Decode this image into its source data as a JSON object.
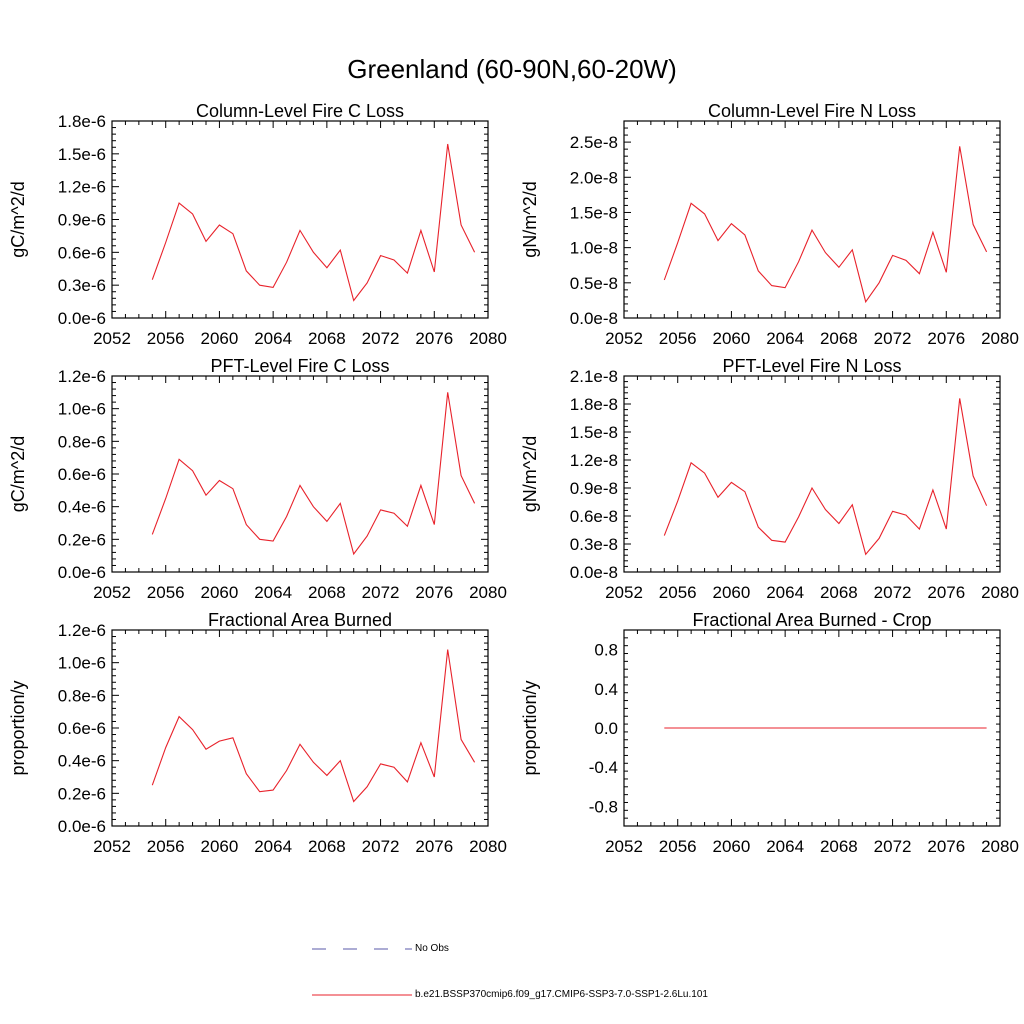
{
  "title": "Greenland (60-90N,60-20W)",
  "legend": {
    "no_obs_label": "No Obs",
    "no_obs_color": "#5a5aa8",
    "case_label": "b.e21.BSSP370cmip6.f09_g17.CMIP6-SSP3-7.0-SSP1-2.6Lu.101",
    "case_color": "#e8222b"
  },
  "chart_data": [
    {
      "type": "line",
      "title": "Column-Level Fire C Loss",
      "ylabel": "gC/m^2/d",
      "xlim": [
        2052,
        2080
      ],
      "xticks": [
        "2052",
        "2056",
        "2060",
        "2064",
        "2068",
        "2072",
        "2076",
        "2080"
      ],
      "ylim": [
        0,
        1.8e-06
      ],
      "yticks": [
        {
          "v": 0,
          "label": "0.0e-6"
        },
        {
          "v": 3e-07,
          "label": "0.3e-6"
        },
        {
          "v": 6e-07,
          "label": "0.6e-6"
        },
        {
          "v": 9e-07,
          "label": "0.9e-6"
        },
        {
          "v": 1.2e-06,
          "label": "1.2e-6"
        },
        {
          "v": 1.5e-06,
          "label": "1.5e-6"
        },
        {
          "v": 1.8e-06,
          "label": "1.8e-6"
        }
      ],
      "x": [
        2055,
        2056,
        2057,
        2058,
        2059,
        2060,
        2061,
        2062,
        2063,
        2064,
        2065,
        2066,
        2067,
        2068,
        2069,
        2070,
        2071,
        2072,
        2073,
        2074,
        2075,
        2076,
        2077,
        2078,
        2079
      ],
      "series": [
        {
          "values": [
            3.5e-07,
            6.9e-07,
            1.05e-06,
            9.5e-07,
            7e-07,
            8.5e-07,
            7.7e-07,
            4.3e-07,
            3e-07,
            2.8e-07,
            5.1e-07,
            8e-07,
            6e-07,
            4.6e-07,
            6.2e-07,
            1.6e-07,
            3.2e-07,
            5.7e-07,
            5.3e-07,
            4.1e-07,
            8e-07,
            4.2e-07,
            1.59e-06,
            8.5e-07,
            6e-07
          ]
        }
      ]
    },
    {
      "type": "line",
      "title": "Column-Level Fire N Loss",
      "ylabel": "gN/m^2/d",
      "xlim": [
        2052,
        2080
      ],
      "xticks": [
        "2052",
        "2056",
        "2060",
        "2064",
        "2068",
        "2072",
        "2076",
        "2080"
      ],
      "ylim": [
        0,
        2.8e-08
      ],
      "yticks": [
        {
          "v": 0,
          "label": "0.0e-8"
        },
        {
          "v": 5e-09,
          "label": "0.5e-8"
        },
        {
          "v": 1e-08,
          "label": "1.0e-8"
        },
        {
          "v": 1.5e-08,
          "label": "1.5e-8"
        },
        {
          "v": 2e-08,
          "label": "2.0e-8"
        },
        {
          "v": 2.5e-08,
          "label": "2.5e-8"
        }
      ],
      "x": [
        2055,
        2056,
        2057,
        2058,
        2059,
        2060,
        2061,
        2062,
        2063,
        2064,
        2065,
        2066,
        2067,
        2068,
        2069,
        2070,
        2071,
        2072,
        2073,
        2074,
        2075,
        2076,
        2077,
        2078,
        2079
      ],
      "series": [
        {
          "values": [
            5.4e-09,
            1.07e-08,
            1.63e-08,
            1.48e-08,
            1.1e-08,
            1.34e-08,
            1.18e-08,
            6.7e-09,
            4.6e-09,
            4.3e-09,
            8e-09,
            1.25e-08,
            9.3e-09,
            7.2e-09,
            9.7e-09,
            2.3e-09,
            5e-09,
            8.9e-09,
            8.2e-09,
            6.3e-09,
            1.22e-08,
            6.5e-09,
            2.44e-08,
            1.33e-08,
            9.4e-09
          ]
        }
      ]
    },
    {
      "type": "line",
      "title": "PFT-Level Fire C Loss",
      "ylabel": "gC/m^2/d",
      "xlim": [
        2052,
        2080
      ],
      "xticks": [
        "2052",
        "2056",
        "2060",
        "2064",
        "2068",
        "2072",
        "2076",
        "2080"
      ],
      "ylim": [
        0,
        1.2e-06
      ],
      "yticks": [
        {
          "v": 0,
          "label": "0.0e-6"
        },
        {
          "v": 2e-07,
          "label": "0.2e-6"
        },
        {
          "v": 4e-07,
          "label": "0.4e-6"
        },
        {
          "v": 6e-07,
          "label": "0.6e-6"
        },
        {
          "v": 8e-07,
          "label": "0.8e-6"
        },
        {
          "v": 1e-06,
          "label": "1.0e-6"
        },
        {
          "v": 1.2e-06,
          "label": "1.2e-6"
        }
      ],
      "x": [
        2055,
        2056,
        2057,
        2058,
        2059,
        2060,
        2061,
        2062,
        2063,
        2064,
        2065,
        2066,
        2067,
        2068,
        2069,
        2070,
        2071,
        2072,
        2073,
        2074,
        2075,
        2076,
        2077,
        2078,
        2079
      ],
      "series": [
        {
          "values": [
            2.3e-07,
            4.5e-07,
            6.9e-07,
            6.2e-07,
            4.7e-07,
            5.6e-07,
            5.1e-07,
            2.9e-07,
            2e-07,
            1.9e-07,
            3.4e-07,
            5.3e-07,
            4e-07,
            3.1e-07,
            4.2e-07,
            1.1e-07,
            2.2e-07,
            3.8e-07,
            3.6e-07,
            2.8e-07,
            5.3e-07,
            2.9e-07,
            1.1e-06,
            5.9e-07,
            4.2e-07
          ]
        }
      ]
    },
    {
      "type": "line",
      "title": "PFT-Level Fire N Loss",
      "ylabel": "gN/m^2/d",
      "xlim": [
        2052,
        2080
      ],
      "xticks": [
        "2052",
        "2056",
        "2060",
        "2064",
        "2068",
        "2072",
        "2076",
        "2080"
      ],
      "ylim": [
        0,
        2.1e-08
      ],
      "yticks": [
        {
          "v": 0,
          "label": "0.0e-8"
        },
        {
          "v": 3e-09,
          "label": "0.3e-8"
        },
        {
          "v": 6e-09,
          "label": "0.6e-8"
        },
        {
          "v": 9e-09,
          "label": "0.9e-8"
        },
        {
          "v": 1.2e-08,
          "label": "1.2e-8"
        },
        {
          "v": 1.5e-08,
          "label": "1.5e-8"
        },
        {
          "v": 1.8e-08,
          "label": "1.8e-8"
        },
        {
          "v": 2.1e-08,
          "label": "2.1e-8"
        }
      ],
      "x": [
        2055,
        2056,
        2057,
        2058,
        2059,
        2060,
        2061,
        2062,
        2063,
        2064,
        2065,
        2066,
        2067,
        2068,
        2069,
        2070,
        2071,
        2072,
        2073,
        2074,
        2075,
        2076,
        2077,
        2078,
        2079
      ],
      "series": [
        {
          "values": [
            3.9e-09,
            7.6e-09,
            1.17e-08,
            1.06e-08,
            8e-09,
            9.6e-09,
            8.6e-09,
            4.8e-09,
            3.4e-09,
            3.2e-09,
            5.9e-09,
            9e-09,
            6.7e-09,
            5.2e-09,
            7.2e-09,
            1.9e-09,
            3.6e-09,
            6.5e-09,
            6.1e-09,
            4.6e-09,
            8.8e-09,
            4.6e-09,
            1.86e-08,
            1.03e-08,
            7.1e-09
          ]
        }
      ]
    },
    {
      "type": "line",
      "title": "Fractional Area Burned",
      "ylabel": "proportion/y",
      "xlim": [
        2052,
        2080
      ],
      "xticks": [
        "2052",
        "2056",
        "2060",
        "2064",
        "2068",
        "2072",
        "2076",
        "2080"
      ],
      "ylim": [
        0,
        1.2e-06
      ],
      "yticks": [
        {
          "v": 0,
          "label": "0.0e-6"
        },
        {
          "v": 2e-07,
          "label": "0.2e-6"
        },
        {
          "v": 4e-07,
          "label": "0.4e-6"
        },
        {
          "v": 6e-07,
          "label": "0.6e-6"
        },
        {
          "v": 8e-07,
          "label": "0.8e-6"
        },
        {
          "v": 1e-06,
          "label": "1.0e-6"
        },
        {
          "v": 1.2e-06,
          "label": "1.2e-6"
        }
      ],
      "x": [
        2055,
        2056,
        2057,
        2058,
        2059,
        2060,
        2061,
        2062,
        2063,
        2064,
        2065,
        2066,
        2067,
        2068,
        2069,
        2070,
        2071,
        2072,
        2073,
        2074,
        2075,
        2076,
        2077,
        2078,
        2079
      ],
      "series": [
        {
          "values": [
            2.5e-07,
            4.8e-07,
            6.7e-07,
            5.9e-07,
            4.7e-07,
            5.2e-07,
            5.4e-07,
            3.2e-07,
            2.1e-07,
            2.2e-07,
            3.4e-07,
            5e-07,
            3.9e-07,
            3.1e-07,
            4e-07,
            1.5e-07,
            2.4e-07,
            3.8e-07,
            3.6e-07,
            2.7e-07,
            5.1e-07,
            3e-07,
            1.08e-06,
            5.3e-07,
            3.9e-07
          ]
        }
      ]
    },
    {
      "type": "line",
      "title": "Fractional Area Burned - Crop",
      "ylabel": "proportion/y",
      "xlim": [
        2052,
        2080
      ],
      "xticks": [
        "2052",
        "2056",
        "2060",
        "2064",
        "2068",
        "2072",
        "2076",
        "2080"
      ],
      "ylim": [
        -1.0,
        1.0
      ],
      "yticks": [
        {
          "v": -0.8,
          "label": "-0.8"
        },
        {
          "v": -0.4,
          "label": "-0.4"
        },
        {
          "v": 0,
          "label": "0.0"
        },
        {
          "v": 0.4,
          "label": "0.4"
        },
        {
          "v": 0.8,
          "label": "0.8"
        }
      ],
      "x": [
        2055,
        2056,
        2057,
        2058,
        2059,
        2060,
        2061,
        2062,
        2063,
        2064,
        2065,
        2066,
        2067,
        2068,
        2069,
        2070,
        2071,
        2072,
        2073,
        2074,
        2075,
        2076,
        2077,
        2078,
        2079
      ],
      "series": [
        {
          "values": [
            0,
            0,
            0,
            0,
            0,
            0,
            0,
            0,
            0,
            0,
            0,
            0,
            0,
            0,
            0,
            0,
            0,
            0,
            0,
            0,
            0,
            0,
            0,
            0,
            0
          ]
        }
      ]
    }
  ]
}
